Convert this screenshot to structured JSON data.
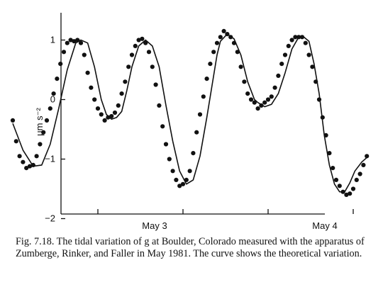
{
  "caption": "Fig. 7.18. The tidal variation of g at Boulder, Colorado measured with the apparatus of Zumberge, Rinker, and Faller in May 1981. The curve shows the theoretical variation.",
  "chart_data": {
    "type": "line",
    "ylabel": "μm s⁻²",
    "ylim": [
      -2,
      1.35
    ],
    "xlim": [
      2.45,
      4.62
    ],
    "x_label_ticks": [
      {
        "x": 3.0,
        "label": "May 3"
      },
      {
        "x": 4.0,
        "label": "May 4"
      }
    ],
    "x_minor_ticks": [
      3.5,
      4.5
    ],
    "y_ticks": [
      -2,
      -1,
      0,
      1
    ],
    "series": [
      {
        "kind": "theory_curve",
        "x": [
          2.5,
          2.56,
          2.62,
          2.67,
          2.72,
          2.77,
          2.82,
          2.87,
          2.9,
          2.94,
          2.98,
          3.02,
          3.05,
          3.08,
          3.11,
          3.14,
          3.17,
          3.2,
          3.24,
          3.28,
          3.32,
          3.36,
          3.4,
          3.44,
          3.48,
          3.52,
          3.56,
          3.6,
          3.64,
          3.68,
          3.7,
          3.72,
          3.76,
          3.8,
          3.84,
          3.88,
          3.92,
          3.94,
          3.98,
          4.02,
          4.06,
          4.1,
          4.14,
          4.18,
          4.21,
          4.24,
          4.27,
          4.3,
          4.33,
          4.36,
          4.39,
          4.42,
          4.45,
          4.48,
          4.51,
          4.55,
          4.59
        ],
        "y": [
          -0.4,
          -0.85,
          -1.12,
          -1.1,
          -0.75,
          -0.15,
          0.5,
          0.95,
          1.0,
          0.95,
          0.55,
          0.0,
          -0.25,
          -0.33,
          -0.3,
          -0.2,
          0.15,
          0.55,
          0.9,
          1.0,
          0.9,
          0.55,
          -0.1,
          -0.7,
          -1.2,
          -1.42,
          -1.35,
          -0.95,
          -0.3,
          0.4,
          0.75,
          0.98,
          1.1,
          1.02,
          0.75,
          0.3,
          0.0,
          -0.05,
          -0.12,
          -0.08,
          0.1,
          0.45,
          0.85,
          1.05,
          1.05,
          0.98,
          0.6,
          0.1,
          -0.6,
          -1.1,
          -1.42,
          -1.55,
          -1.55,
          -1.4,
          -1.2,
          -1.05,
          -0.95
        ]
      },
      {
        "kind": "measurements",
        "x": [
          2.5,
          2.52,
          2.54,
          2.56,
          2.58,
          2.6,
          2.62,
          2.64,
          2.66,
          2.68,
          2.7,
          2.72,
          2.74,
          2.76,
          2.78,
          2.8,
          2.82,
          2.84,
          2.86,
          2.88,
          2.9,
          2.92,
          2.94,
          2.96,
          2.98,
          3.0,
          3.02,
          3.04,
          3.06,
          3.08,
          3.1,
          3.12,
          3.14,
          3.16,
          3.18,
          3.2,
          3.22,
          3.24,
          3.26,
          3.28,
          3.3,
          3.32,
          3.34,
          3.36,
          3.38,
          3.4,
          3.42,
          3.44,
          3.46,
          3.48,
          3.5,
          3.52,
          3.54,
          3.56,
          3.58,
          3.6,
          3.62,
          3.64,
          3.66,
          3.68,
          3.7,
          3.72,
          3.74,
          3.76,
          3.78,
          3.8,
          3.82,
          3.84,
          3.86,
          3.88,
          3.9,
          3.92,
          3.94,
          3.96,
          3.98,
          4.0,
          4.02,
          4.04,
          4.06,
          4.08,
          4.1,
          4.12,
          4.14,
          4.16,
          4.18,
          4.2,
          4.22,
          4.24,
          4.26,
          4.28,
          4.3,
          4.32,
          4.34,
          4.36,
          4.38,
          4.4,
          4.42,
          4.44,
          4.46,
          4.48,
          4.5,
          4.52,
          4.54,
          4.56,
          4.58
        ],
        "y": [
          -0.35,
          -0.7,
          -0.95,
          -1.05,
          -1.15,
          -1.12,
          -1.1,
          -0.95,
          -0.75,
          -0.55,
          -0.35,
          -0.15,
          0.1,
          0.35,
          0.6,
          0.8,
          0.95,
          1.0,
          0.98,
          1.0,
          0.95,
          0.75,
          0.45,
          0.2,
          0.0,
          -0.15,
          -0.25,
          -0.35,
          -0.3,
          -0.28,
          -0.22,
          -0.1,
          0.1,
          0.3,
          0.55,
          0.75,
          0.9,
          1.0,
          1.02,
          0.95,
          0.8,
          0.55,
          0.25,
          -0.1,
          -0.45,
          -0.75,
          -1.0,
          -1.2,
          -1.35,
          -1.45,
          -1.42,
          -1.35,
          -1.2,
          -0.9,
          -0.55,
          -0.25,
          0.05,
          0.35,
          0.6,
          0.8,
          0.95,
          1.05,
          1.15,
          1.1,
          1.05,
          0.95,
          0.8,
          0.55,
          0.3,
          0.1,
          0.0,
          -0.05,
          -0.15,
          -0.1,
          -0.05,
          0.0,
          0.05,
          0.2,
          0.4,
          0.6,
          0.75,
          0.9,
          1.0,
          1.05,
          1.05,
          1.05,
          0.95,
          0.75,
          0.55,
          0.3,
          0.0,
          -0.3,
          -0.6,
          -0.9,
          -1.15,
          -1.35,
          -1.45,
          -1.55,
          -1.6,
          -1.58,
          -1.5,
          -1.35,
          -1.25,
          -1.1,
          -0.95
        ]
      }
    ]
  }
}
